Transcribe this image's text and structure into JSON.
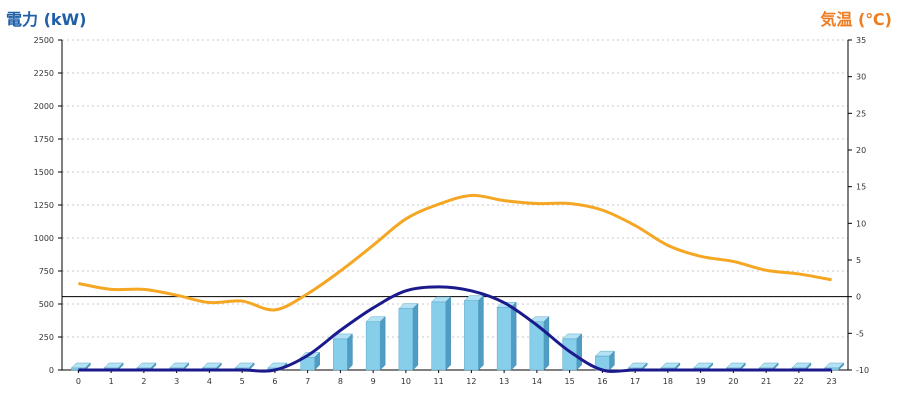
{
  "chart_data": {
    "type": "bar+line",
    "left_axis_title": "電力 (kW)",
    "right_axis_title": "気温 (℃)",
    "left_ylim": [
      0,
      2500
    ],
    "left_ticks": [
      0,
      250,
      500,
      750,
      1000,
      1250,
      1500,
      1750,
      2000,
      2250,
      2500
    ],
    "right_ylim": [
      -10,
      35
    ],
    "right_ticks": [
      -10,
      -5,
      0,
      5,
      10,
      15,
      20,
      25,
      30,
      35
    ],
    "categories": [
      "0",
      "1",
      "2",
      "3",
      "4",
      "5",
      "6",
      "7",
      "8",
      "9",
      "10",
      "11",
      "12",
      "13",
      "14",
      "15",
      "16",
      "17",
      "18",
      "19",
      "20",
      "21",
      "22",
      "23"
    ],
    "grid": true,
    "reference_line_right_value": 0,
    "bar_series": {
      "axis": "left",
      "color": "#87ceeb",
      "values": [
        0,
        0,
        0,
        0,
        0,
        0,
        0,
        80,
        220,
        350,
        450,
        500,
        510,
        460,
        350,
        220,
        90,
        0,
        0,
        0,
        0,
        0,
        0,
        0
      ]
    },
    "power_curve": {
      "axis": "left",
      "color": "#1a1a8c",
      "values": [
        0,
        0,
        0,
        0,
        0,
        0,
        0,
        110,
        300,
        470,
        600,
        630,
        600,
        510,
        340,
        140,
        0,
        0,
        0,
        0,
        0,
        0,
        0,
        0
      ]
    },
    "temperature_line": {
      "axis": "right",
      "color": "#f5a623",
      "values": [
        1.8,
        1.0,
        1.0,
        0.2,
        -0.8,
        -0.6,
        -1.8,
        0.4,
        3.5,
        7.0,
        10.6,
        12.6,
        13.8,
        13.1,
        12.7,
        12.7,
        11.8,
        9.7,
        7.0,
        5.5,
        4.8,
        3.6,
        3.1,
        2.3
      ]
    }
  }
}
